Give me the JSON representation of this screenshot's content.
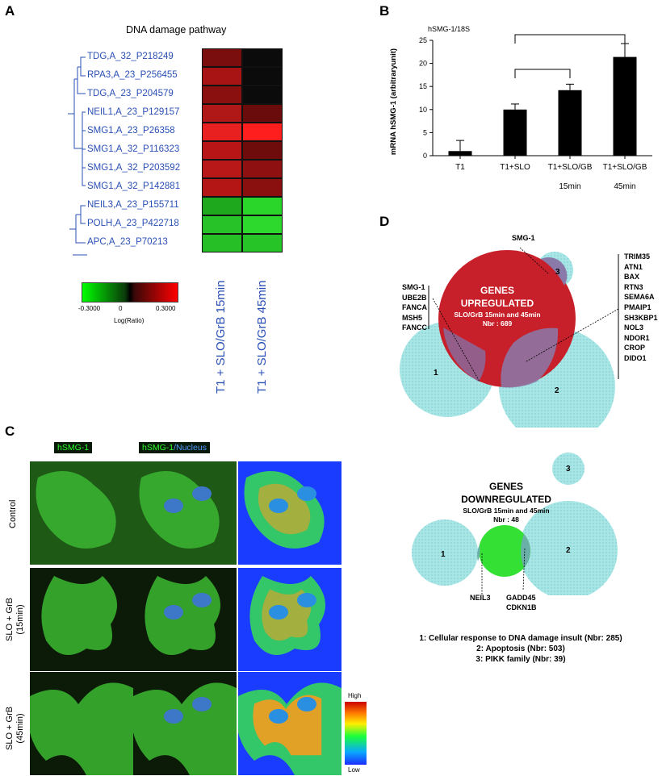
{
  "panel_a": {
    "letter": "A",
    "title": "DNA damage pathway",
    "genes": [
      "TDG,A_32_P218249",
      "RPA3,A_23_P256455",
      "TDG,A_23_P204579",
      "NEIL1,A_23_P129157",
      "SMG1,A_23_P26358",
      "SMG1,A_32_P116323",
      "SMG1,A_32_P203592",
      "SMG1,A_32_P142881",
      "NEIL3,A_23_P155711",
      "POLH,A_23_P422718",
      "APC,A_23_P70213"
    ],
    "heatmap_colors": [
      [
        "#7a0d0d",
        "#0b0b0b"
      ],
      [
        "#a81414",
        "#0b0b0b"
      ],
      [
        "#8a1010",
        "#0b0b0b"
      ],
      [
        "#b01818",
        "#6a0c0c"
      ],
      [
        "#e82020",
        "#ff1e1e"
      ],
      [
        "#b81616",
        "#6e0c0c"
      ],
      [
        "#b81818",
        "#8e1010"
      ],
      [
        "#b41616",
        "#8a0f0f"
      ],
      [
        "#1ea81e",
        "#2bd62b"
      ],
      [
        "#27c227",
        "#2ed92e"
      ],
      [
        "#26c026",
        "#26c426"
      ]
    ],
    "conditions": [
      "T1 + SLO/GrB 15min",
      "T1 + SLO/GrB 45min"
    ],
    "legend_min": "-0.3000",
    "legend_mid": "0",
    "legend_max": "0.3000",
    "legend_caption": "Log(Ratio)"
  },
  "panel_b": {
    "letter": "B",
    "chart_data": {
      "type": "bar",
      "title": "hSMG-1/18S",
      "ylabel": "mRNA hSMG-1 (arbitraryunit)",
      "ylim": [
        0,
        25
      ],
      "yticks": [
        0,
        5,
        10,
        15,
        20,
        25
      ],
      "categories": [
        "T1",
        "T1+SLO",
        "T1+SLO/GB",
        "T1+SLO/GB"
      ],
      "category_sublabels": [
        "",
        "",
        "15min",
        "45min"
      ],
      "values": [
        1,
        10,
        14.2,
        21.4
      ],
      "errors": [
        2.3,
        1.2,
        1.3,
        2.9
      ],
      "grid": false,
      "bar_color": "#000000"
    }
  },
  "panel_c": {
    "letter": "C",
    "column_heads": [
      "hSMG-1",
      "hSMG-1",
      "/Nucleus"
    ],
    "row_labels": [
      "Control",
      "SLO + GrB\n(15min)",
      "SLO + GrB\n(45min)"
    ],
    "scale_high": "High",
    "scale_low": "Low"
  },
  "panel_d": {
    "letter": "D",
    "up": {
      "title_line1": "GENES",
      "title_line2": "UPREGULATED",
      "sub": "SLO/GrB 15min and 45min",
      "count": "Nbr : 689",
      "smg_top": "SMG-1",
      "left_list": [
        "SMG-1",
        "UBE2B",
        "FANCA",
        "MSH5",
        "FANCC"
      ],
      "right_list": [
        "TRIM35",
        "ATN1",
        "BAX",
        "RTN3",
        "SEMA6A",
        "PMAIP1",
        "SH3KBP1",
        "NOL3",
        "NDOR1",
        "CROP",
        "DIDO1"
      ],
      "circle_1": "1",
      "circle_2": "2",
      "circle_3": "3"
    },
    "down": {
      "title_line1": "GENES",
      "title_line2": "DOWNREGULATED",
      "sub": "SLO/GrB 15min and 45min",
      "count": "Nbr : 48",
      "neil3": "NEIL3",
      "gadd45": "GADD45",
      "cdkn1b": "CDKN1B",
      "circle_1": "1",
      "circle_2": "2",
      "circle_3": "3"
    },
    "legend": [
      "1: Cellular response to DNA damage insult (Nbr: 285)",
      "2: Apoptosis (Nbr: 503)",
      "3: PIKK family (Nbr: 39)"
    ],
    "colors": {
      "up": "#c8202a",
      "down": "#35e035",
      "circle": "#a8e6e6"
    }
  }
}
